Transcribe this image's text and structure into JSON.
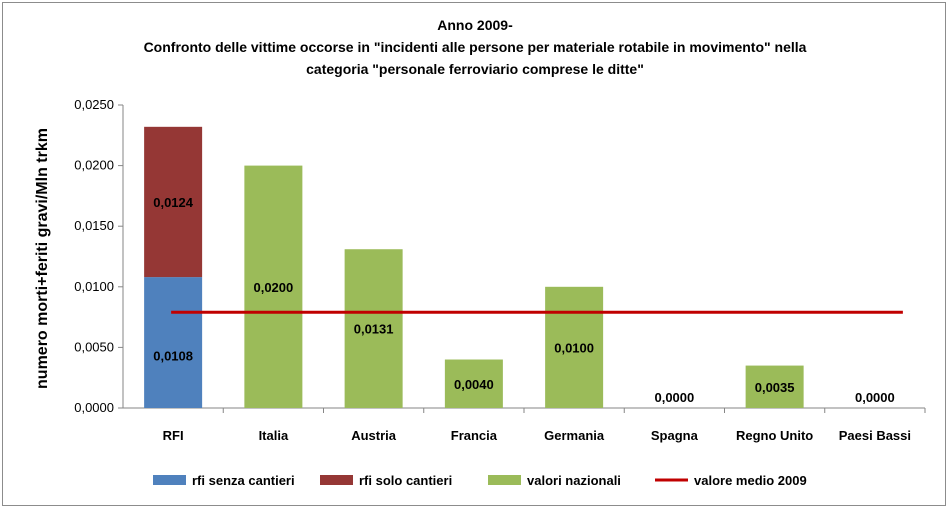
{
  "chart_data": {
    "type": "bar",
    "title_lines": [
      "Anno 2009-",
      "Confronto delle vittime occorse in \"incidenti alle persone per materiale rotabile in movimento\" nella",
      "categoria \"personale ferroviario comprese le ditte\""
    ],
    "ylabel": "numero morti+feriti gravi/Mln trkm",
    "ylim": [
      0,
      0.025
    ],
    "yticks": [
      "0,0000",
      "0,0050",
      "0,0100",
      "0,0150",
      "0,0200",
      "0,0250"
    ],
    "ytick_values": [
      0,
      0.005,
      0.01,
      0.015,
      0.02,
      0.025
    ],
    "categories": [
      "RFI",
      "Italia",
      "Austria",
      "Francia",
      "Germania",
      "Spagna",
      "Regno Unito",
      "Paesi Bassi"
    ],
    "series": [
      {
        "name": "rfi senza cantieri",
        "color": "#4f81bd",
        "values": [
          0.0108,
          0,
          0,
          0,
          0,
          0,
          0,
          0
        ],
        "labels": [
          "0,0108",
          "",
          "",
          "",
          "",
          "",
          "",
          ""
        ]
      },
      {
        "name": "rfi solo cantieri",
        "color": "#953735",
        "values": [
          0.0124,
          0,
          0,
          0,
          0,
          0,
          0,
          0
        ],
        "labels": [
          "0,0124",
          "",
          "",
          "",
          "",
          "",
          "",
          ""
        ]
      },
      {
        "name": "valori nazionali",
        "color": "#9bbb59",
        "values": [
          0,
          0.02,
          0.0131,
          0.004,
          0.01,
          0.0,
          0.0035,
          0.0
        ],
        "labels": [
          "",
          "0,0200",
          "0,0131",
          "0,0040",
          "0,0100",
          "0,0000",
          "0,0035",
          "0,0000"
        ]
      }
    ],
    "reference_line": {
      "name": "valore medio 2009",
      "color": "#c00000",
      "value": 0.0079
    },
    "legend_position": "bottom",
    "grid": false
  }
}
